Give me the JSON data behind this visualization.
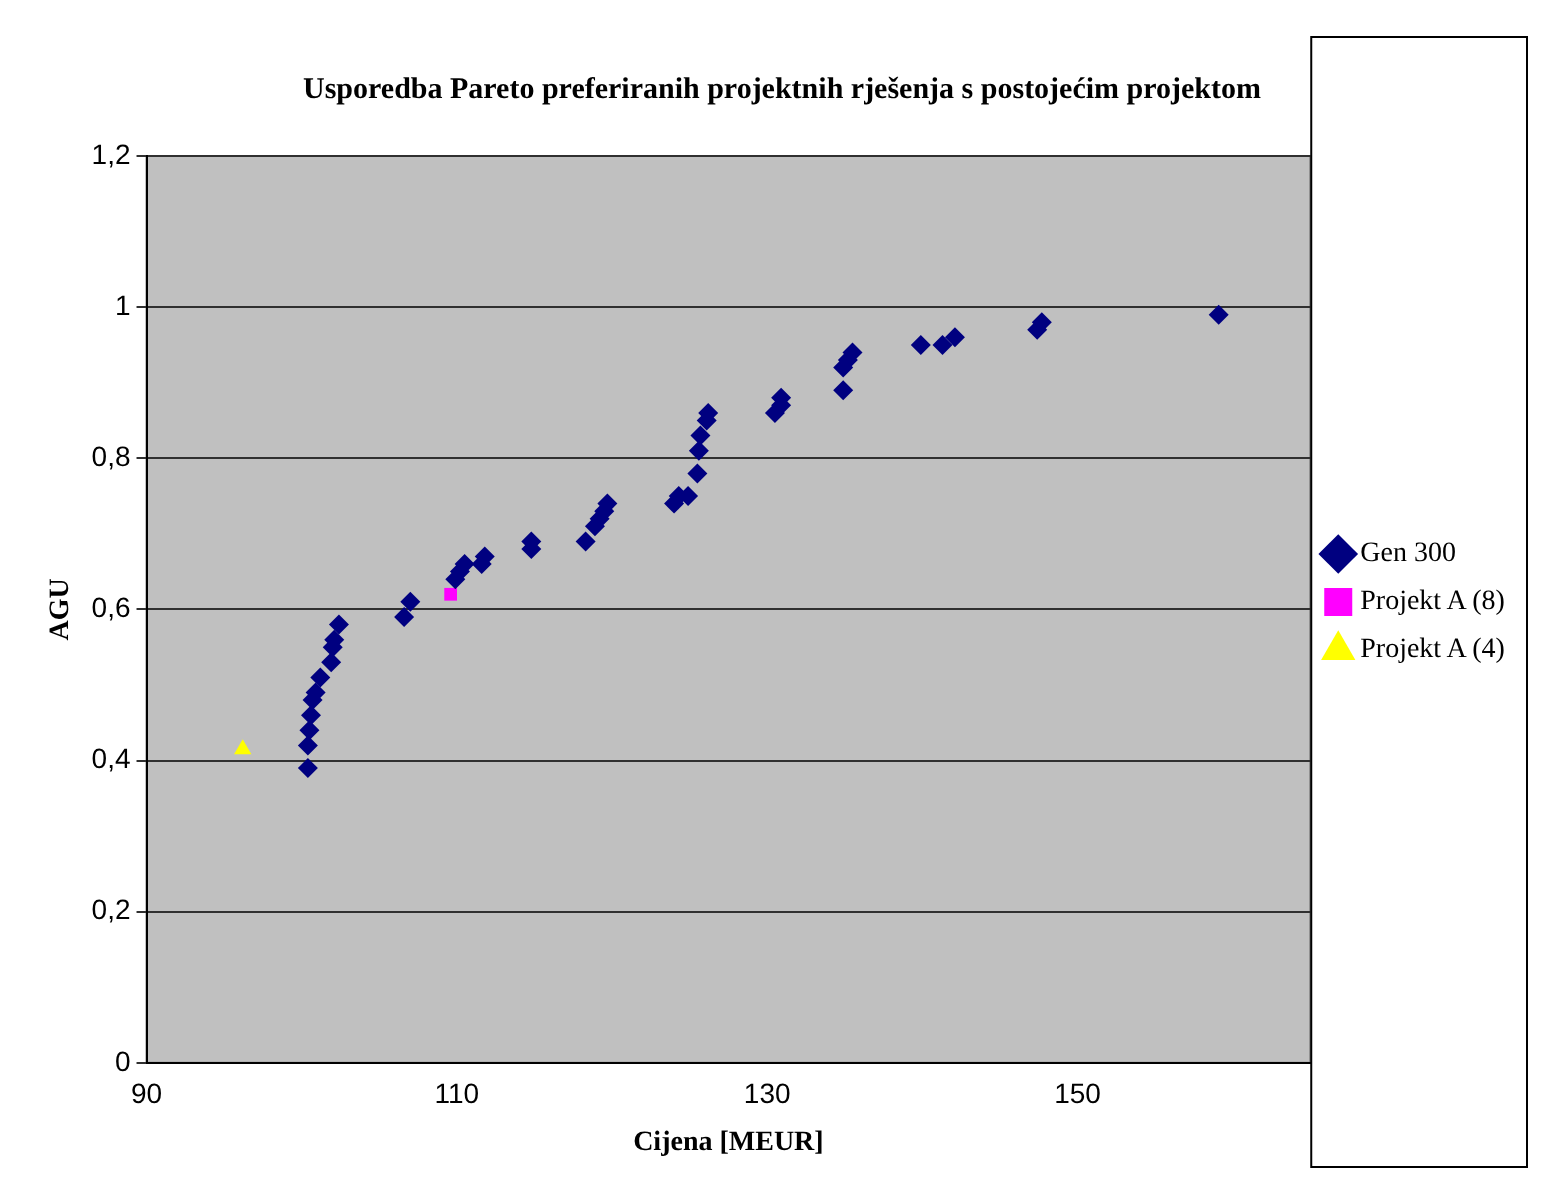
{
  "chart_data": {
    "type": "scatter",
    "title": "Usporedba Pareto preferiranih projektnih rješenja s postojećim projektom",
    "xlabel": "Cijena [MEUR]",
    "ylabel": "AGU",
    "xlim": [
      90,
      165
    ],
    "xticks": [
      90,
      110,
      130,
      150
    ],
    "ylim": [
      0,
      1.2
    ],
    "yticks": [
      {
        "value": 0,
        "label": "0"
      },
      {
        "value": 0.2,
        "label": "0,2"
      },
      {
        "value": 0.4,
        "label": "0,4"
      },
      {
        "value": 0.6,
        "label": "0,6"
      },
      {
        "value": 0.8,
        "label": "0,8"
      },
      {
        "value": 1,
        "label": "1"
      },
      {
        "value": 1.2,
        "label": "1,2"
      }
    ],
    "grid": "y",
    "legend": "right",
    "series": [
      {
        "name": "Gen 300",
        "color": "#000080",
        "marker": "diamond",
        "x": [
          100.4,
          100.4,
          100.5,
          100.6,
          100.7,
          100.9,
          101.2,
          101.9,
          102.0,
          102.1,
          102.4,
          106.6,
          107.0,
          109.9,
          110.2,
          110.5,
          111.6,
          111.8,
          114.8,
          114.8,
          118.3,
          118.9,
          119.2,
          119.5,
          119.7,
          124.0,
          124.3,
          124.9,
          125.5,
          125.6,
          125.7,
          126.1,
          126.2,
          130.5,
          130.9,
          130.9,
          134.9,
          134.9,
          135.2,
          135.5,
          139.9,
          141.3,
          142.1,
          147.4,
          147.7,
          159.1
        ],
        "values": [
          0.39,
          0.42,
          0.44,
          0.46,
          0.48,
          0.49,
          0.51,
          0.53,
          0.55,
          0.56,
          0.58,
          0.59,
          0.61,
          0.64,
          0.65,
          0.66,
          0.66,
          0.67,
          0.68,
          0.69,
          0.69,
          0.71,
          0.72,
          0.73,
          0.74,
          0.74,
          0.75,
          0.75,
          0.78,
          0.81,
          0.83,
          0.85,
          0.86,
          0.86,
          0.87,
          0.88,
          0.89,
          0.92,
          0.93,
          0.94,
          0.95,
          0.95,
          0.96,
          0.97,
          0.98,
          0.99
        ]
      },
      {
        "name": "Projekt A (8)",
        "color": "#ff00ff",
        "marker": "square",
        "x": [
          109.6
        ],
        "values": [
          0.62
        ]
      },
      {
        "name": "Projekt A (4)",
        "color": "#ffff00",
        "marker": "triangle",
        "x": [
          96.2
        ],
        "values": [
          0.415
        ]
      }
    ]
  }
}
